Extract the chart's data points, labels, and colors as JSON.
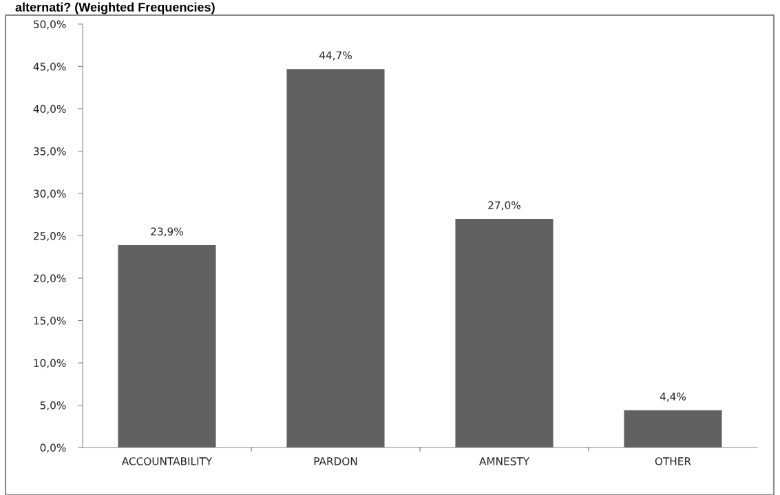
{
  "chart_data": {
    "type": "bar",
    "title": "alternati? (Weighted Frequencies)",
    "categories": [
      "ACCOUNTABILITY",
      "PARDON",
      "AMNESTY",
      "OTHER"
    ],
    "values": [
      23.9,
      44.7,
      27.0,
      4.4
    ],
    "color": "#616161",
    "value_labels": [
      "23,9%",
      "44,7%",
      "27,0%",
      "4,4%"
    ],
    "ylim": [
      0,
      50
    ],
    "yticks": [
      {
        "value": 0,
        "label": "0,0%"
      },
      {
        "value": 5,
        "label": "5,0%"
      },
      {
        "value": 10,
        "label": "10,0%"
      },
      {
        "value": 15,
        "label": "15,0%"
      },
      {
        "value": 20,
        "label": "20,0%"
      },
      {
        "value": 25,
        "label": "25,0%"
      },
      {
        "value": 30,
        "label": "30,0%"
      },
      {
        "value": 35,
        "label": "35,0%"
      },
      {
        "value": 40,
        "label": "40,0%"
      },
      {
        "value": 45,
        "label": "45,0%"
      },
      {
        "value": 50,
        "label": "50,0%"
      }
    ],
    "grid": false,
    "legend": false
  }
}
